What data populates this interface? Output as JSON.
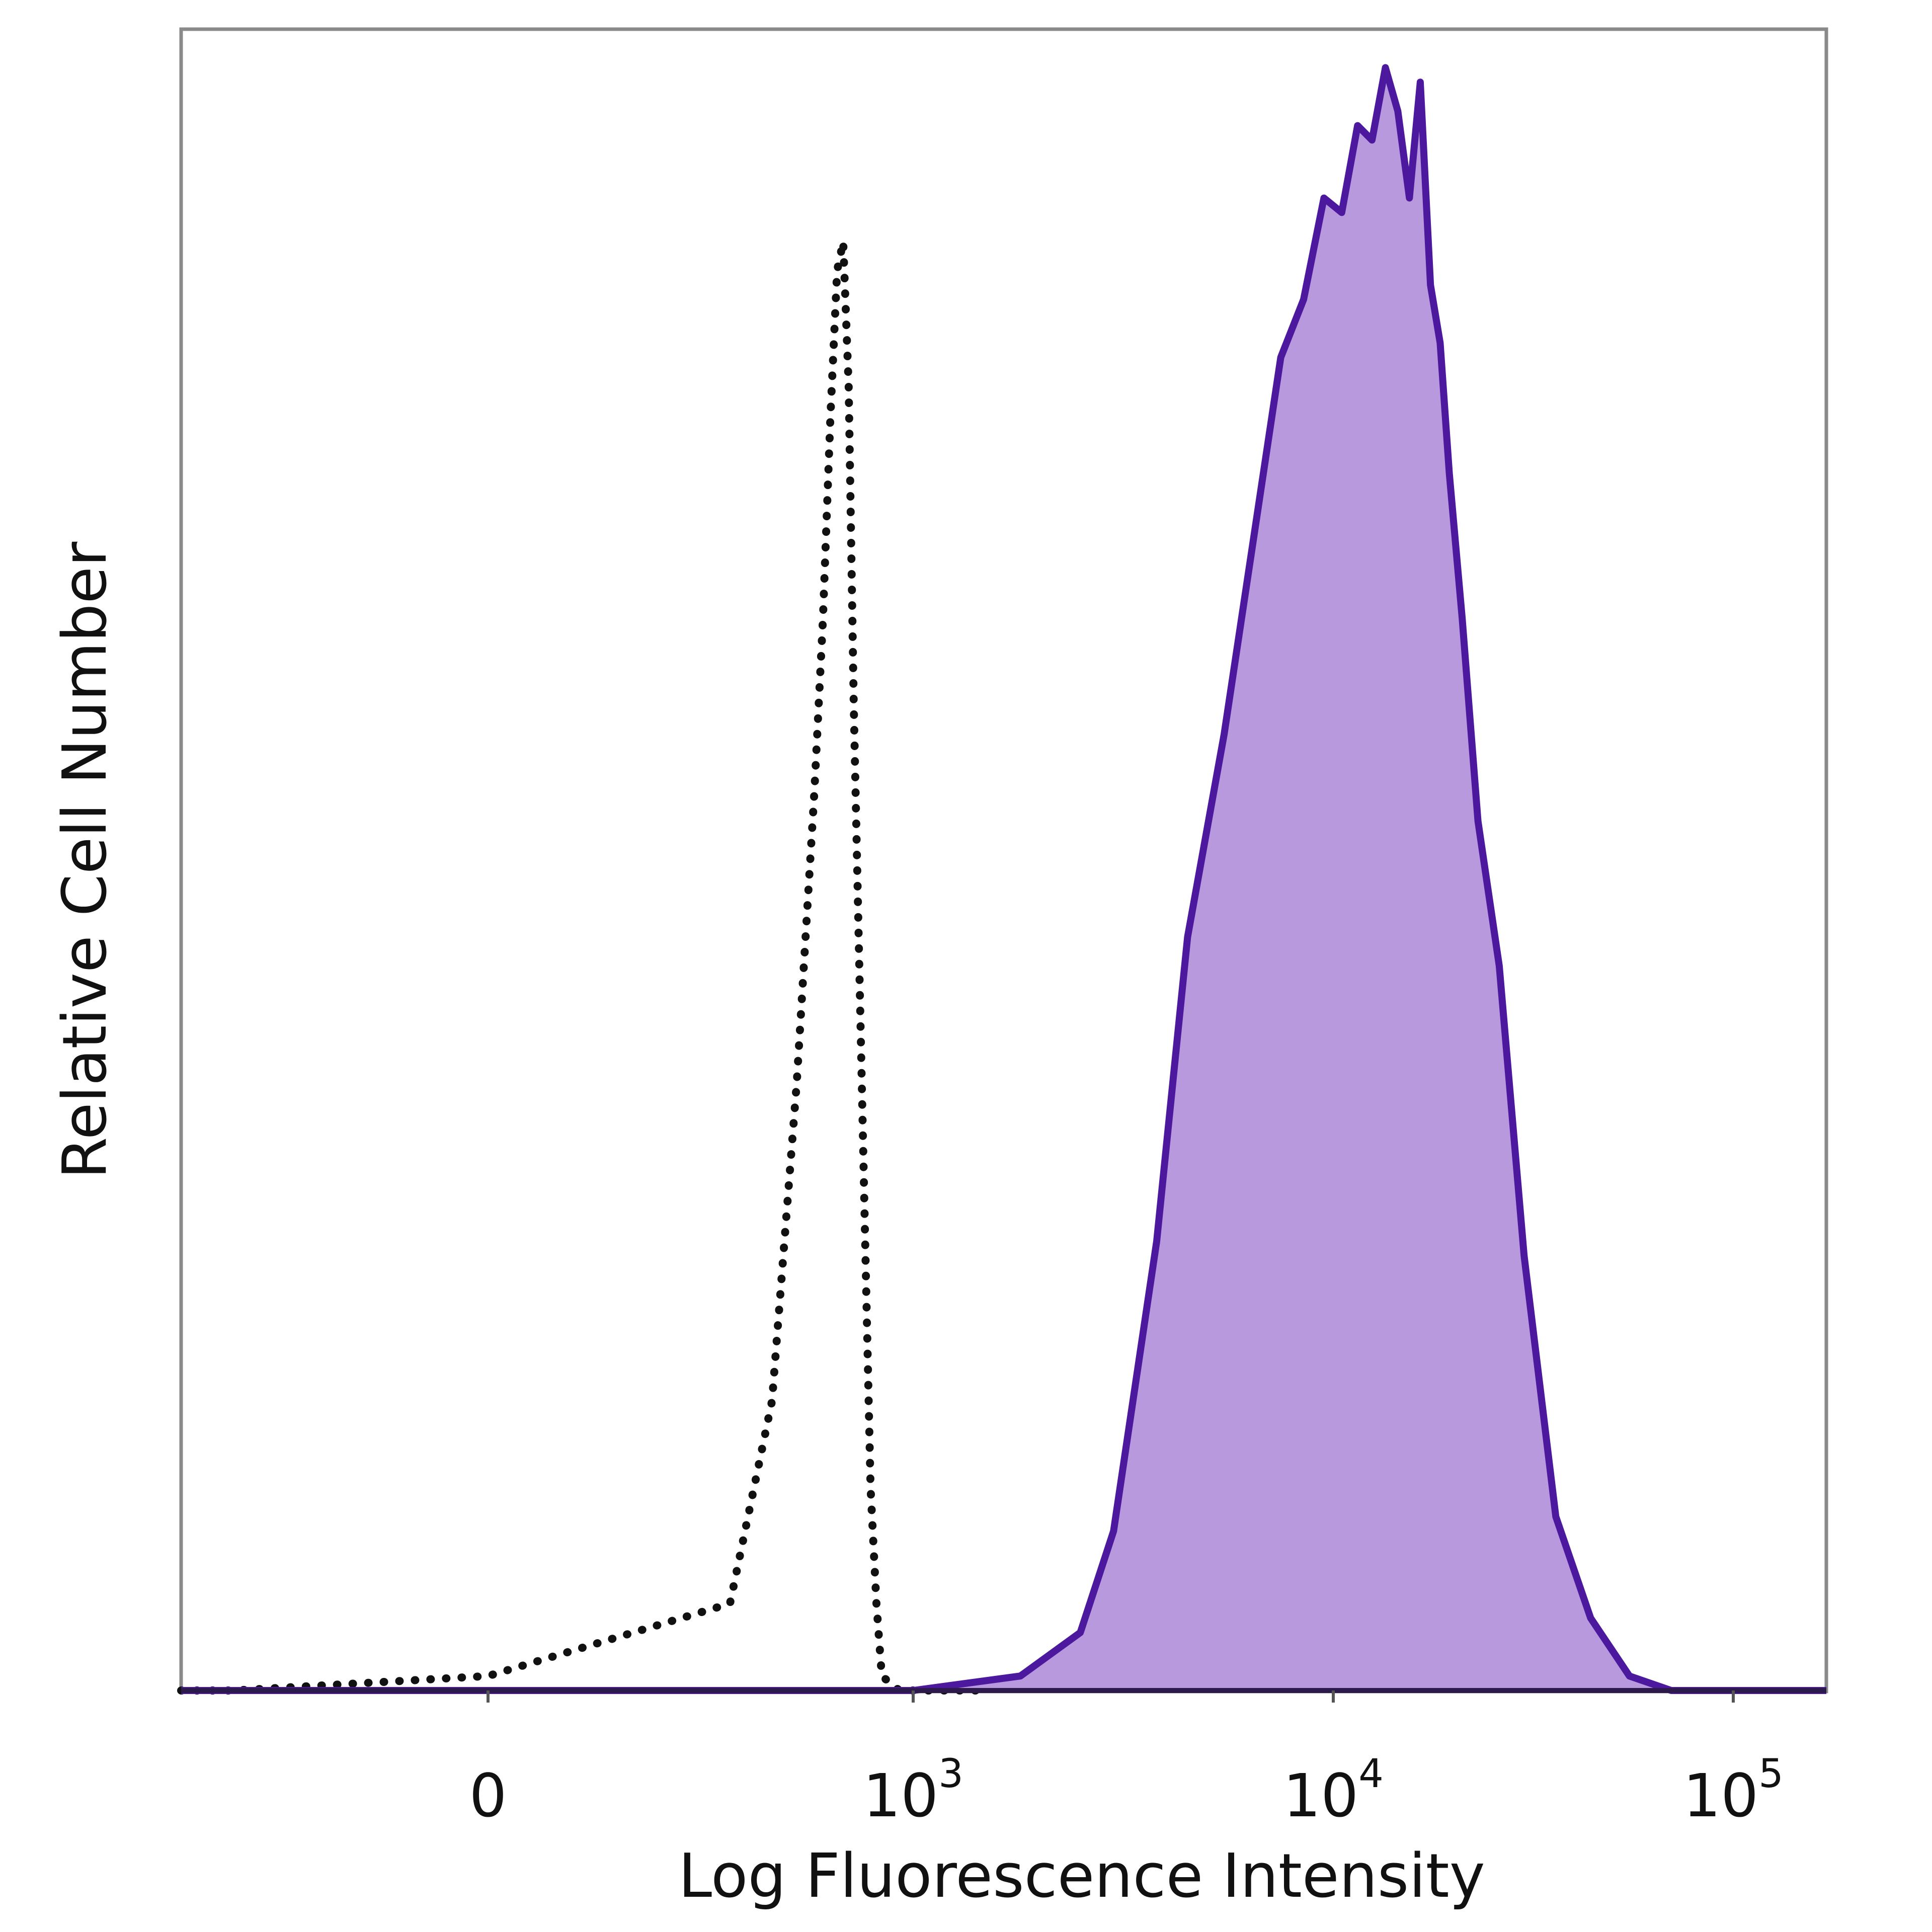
{
  "chart_data": {
    "type": "area",
    "title": "",
    "xlabel": "Log Fluorescence Intensity",
    "ylabel": "Relative Cell Number",
    "x_scale": "biexponential",
    "x_ticks": [
      {
        "value": 0,
        "base": "0",
        "exp": ""
      },
      {
        "value": 1000,
        "base": "10",
        "exp": "3"
      },
      {
        "value": 10000,
        "base": "10",
        "exp": "4"
      },
      {
        "value": 100000,
        "base": "10",
        "exp": "5"
      }
    ],
    "grid": false,
    "legend": "none",
    "series": [
      {
        "style": "dotted-outline",
        "color": "#111111",
        "x": [
          -600,
          -200,
          0,
          50,
          100,
          150,
          200,
          230,
          260,
          290,
          320,
          350,
          380,
          420,
          460,
          500,
          550,
          600,
          800,
          1500
        ],
        "y": [
          0,
          0,
          0.01,
          0.06,
          0.2,
          0.42,
          0.62,
          0.74,
          0.88,
          0.98,
          1.0,
          0.9,
          0.68,
          0.48,
          0.3,
          0.14,
          0.06,
          0.01,
          0,
          0
        ]
      },
      {
        "style": "filled",
        "color": "#4b189e",
        "fill": "#b999dd",
        "x": [
          -600,
          1000,
          1800,
          2500,
          3000,
          3800,
          4500,
          5500,
          6500,
          7500,
          8500,
          9500,
          10500,
          11500,
          12500,
          13500,
          14500,
          15500,
          16500,
          17500,
          18500,
          19500,
          21000,
          23000,
          26000,
          30000,
          36000,
          44000,
          55000,
          70000,
          90000,
          120000,
          150000
        ],
        "y": [
          0,
          0,
          0.01,
          0.04,
          0.11,
          0.31,
          0.52,
          0.66,
          0.8,
          0.92,
          0.96,
          1.03,
          1.02,
          1.08,
          1.07,
          1.12,
          1.09,
          1.03,
          1.11,
          0.97,
          0.93,
          0.84,
          0.74,
          0.6,
          0.5,
          0.3,
          0.12,
          0.05,
          0.01,
          0,
          0,
          0,
          0
        ]
      }
    ]
  }
}
